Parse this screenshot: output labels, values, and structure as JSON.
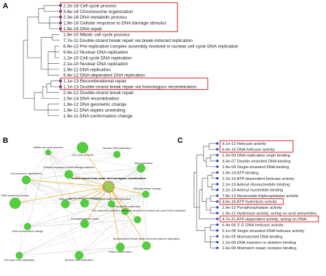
{
  "panels": {
    "a": "A",
    "b": "B",
    "c": "C"
  },
  "colors": {
    "highlight_box": "#e0312f",
    "leaf_dot": "#2b3fd1",
    "node_green": "#4fd13a",
    "edge_gold": "#e8b830"
  },
  "panel_a": {
    "terms": [
      {
        "text": "2.2e-18 Cell cycle process",
        "highlight": true
      },
      {
        "text": "3.6e-18 Chromosome organization",
        "highlight": true
      },
      {
        "text": "2.3e-18 DNA metabolic process",
        "highlight": true
      },
      {
        "text": "1.8e-18 Cellular response to DNA damage stimulus",
        "highlight": true
      },
      {
        "text": "1.8e-18 DNA repair",
        "highlight": true
      },
      {
        "text": "1.8e-10 Mitotic cell cycle process",
        "highlight": false
      },
      {
        "text": "7.7e-11 Double-strand break repair via break-induced replication",
        "highlight": false
      },
      {
        "text": "6.9e-12 Pre-replicative complex assembly involved in nuclear cell cycle DNA replication",
        "highlight": false
      },
      {
        "text": "9.6e-12 Nuclear DNA replication",
        "highlight": false
      },
      {
        "text": "1.2e-10 Cell cycle DNA replication",
        "highlight": false
      },
      {
        "text": "2.1e-10 Nuclear DNA replication",
        "highlight": false
      },
      {
        "text": "1.9e-11 DNA replication",
        "highlight": false
      },
      {
        "text": "9.4e-12 DNA-dependent DNA replication",
        "highlight": false
      },
      {
        "text": "1.1e-13 Recombinational repair",
        "highlight": true
      },
      {
        "text": "1.1e-13 Double-strand break repair via homologous recombination",
        "highlight": true
      },
      {
        "text": "2.4e-12 Double-strand break repair",
        "highlight": false
      },
      {
        "text": "1.5e-14 DNA recombination",
        "highlight": false
      },
      {
        "text": "1.9e-12 DNA geometric change",
        "highlight": false
      },
      {
        "text": "1.9e-11 DNA duplex unwinding",
        "highlight": false
      },
      {
        "text": "1.9e-11 DNA conformation change",
        "highlight": false
      }
    ]
  },
  "panel_b": {
    "nodes": [
      {
        "label": "Mitotic cell cycle process",
        "bold": false
      },
      {
        "label": "Cell cycle process",
        "bold": false
      },
      {
        "label": "Nuclear DNA replication",
        "bold": false
      },
      {
        "label": "Chromosome organization",
        "bold": false
      },
      {
        "label": "Cellular response to DNA damage stimulus",
        "bold": false
      },
      {
        "label": "Double-strand break repair via homologous recombination",
        "bold": true
      },
      {
        "label": "DNA replication",
        "bold": false
      },
      {
        "label": "DNA metabolic process",
        "bold": false
      },
      {
        "label": "DNA repair",
        "bold": false
      },
      {
        "label": "DNA geometric change",
        "bold": false
      },
      {
        "label": "Double-strand break repair",
        "bold": false
      },
      {
        "label": "DNA-dependent DNA replication",
        "bold": false
      },
      {
        "label": "DNA duplex unwinding",
        "bold": false
      },
      {
        "label": "DNA conformation change",
        "bold": false
      },
      {
        "label": "Recombinational repair",
        "bold": false
      },
      {
        "label": "Pre-replicative complex assembly involved in nuclear cell cycle DNA replication",
        "bold": false
      },
      {
        "label": "Cell cycle DNA replication",
        "bold": false
      },
      {
        "label": "DNA recombination",
        "bold": false
      },
      {
        "label": "Double-strand break repair via break-induced replication",
        "bold": false
      },
      {
        "label": "Nuclear DNA replication",
        "bold": false
      }
    ]
  },
  "panel_c": {
    "terms": [
      {
        "text": "9.1e-12 Helicase activity",
        "highlight": true
      },
      {
        "text": "6.0e-15 DNA helicase activity",
        "highlight": true
      },
      {
        "text": "1.3e-09 DNA replication origin binding",
        "highlight": false
      },
      {
        "text": "4.4e-07 Double-stranded DNA binding",
        "highlight": false
      },
      {
        "text": "1.8e-09 Single-stranded DNA binding",
        "highlight": false
      },
      {
        "text": "1.9e-10 ATP binding",
        "highlight": false
      },
      {
        "text": "2.2e-10 ATP-dependent helicase activity",
        "highlight": false
      },
      {
        "text": "2.1e-10 Adenyl ribonucleotide binding",
        "highlight": false
      },
      {
        "text": "2.2e-10 Adenyl nucleotide binding",
        "highlight": false
      },
      {
        "text": "7.8e-13 Nucleoside-triphosphatase activity",
        "highlight": false
      },
      {
        "text": "4.6e-16 ATP hydrolysis activity",
        "highlight": true
      },
      {
        "text": "1.9e-12 Pyrophosphatase activity",
        "highlight": false
      },
      {
        "text": "1.9e-12 Hydrolase activity, acting on acid anhydrides",
        "highlight": false
      },
      {
        "text": "4.7e-21 ATP-dependent activity, acting on DNA",
        "highlight": true
      },
      {
        "text": "6.4e-06 3’-5’ DNA helicase activity",
        "highlight": false
      },
      {
        "text": "5.1e-08 Single-stranded DNA helicase activity",
        "highlight": false
      },
      {
        "text": "2.6e-05 Mismatched DNA binding",
        "highlight": false
      },
      {
        "text": "1.2e-06 DNA insertion or deletion binding",
        "highlight": false
      },
      {
        "text": "1.6e-06 Mismatch repair complex binding",
        "highlight": false
      }
    ]
  }
}
